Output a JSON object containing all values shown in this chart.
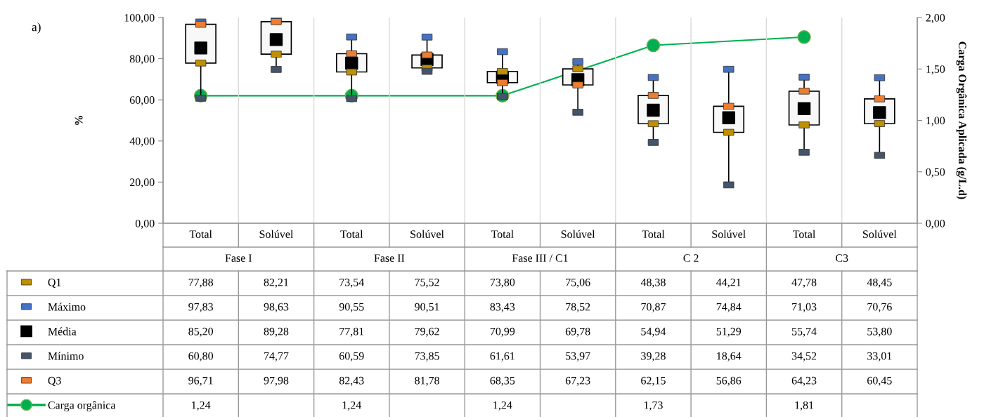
{
  "chart_data": {
    "type": "box",
    "categories": [
      "Total",
      "Solúvel",
      "Total",
      "Solúvel",
      "Total",
      "Solúvel",
      "Total",
      "Solúvel",
      "Total",
      "Solúvel"
    ],
    "annotations": [
      "a)",
      "Fase I",
      "Fase II",
      "Fase III / C1",
      "C 2",
      "C3"
    ],
    "ylabel": "%",
    "y2label": "Carga Orgânica Aplicada (g/L.d)",
    "ylim": [
      0,
      100
    ],
    "yticks": [
      {
        "value": 0,
        "label": "0,00"
      },
      {
        "value": 20,
        "label": "20,00"
      },
      {
        "value": 40,
        "label": "40,00"
      },
      {
        "value": 60,
        "label": "60,00"
      },
      {
        "value": 80,
        "label": "80,00"
      },
      {
        "value": 100,
        "label": "100,00"
      }
    ],
    "y2lim": [
      0,
      2
    ],
    "y2ticks": [
      {
        "value": 0,
        "label": "0,00"
      },
      {
        "value": 0.5,
        "label": "0,50"
      },
      {
        "value": 1,
        "label": "1,00"
      },
      {
        "value": 1.5,
        "label": "1,50"
      },
      {
        "value": 2,
        "label": "2,00"
      }
    ],
    "grid": "x",
    "legend": "bottom",
    "boxes": [
      {
        "low": 60.8,
        "q1": 77.88,
        "q3": 96.71,
        "high": 97.83
      },
      {
        "low": 74.77,
        "q1": 82.21,
        "q3": 97.98,
        "high": 98.63
      },
      {
        "low": 60.59,
        "q1": 73.54,
        "q3": 82.43,
        "high": 90.55
      },
      {
        "low": 73.85,
        "q1": 75.52,
        "q3": 81.78,
        "high": 90.51
      },
      {
        "low": 61.61,
        "q1": 68.35,
        "q3": 73.8,
        "high": 83.43
      },
      {
        "low": 53.97,
        "q1": 67.23,
        "q3": 75.06,
        "high": 78.52
      },
      {
        "low": 39.28,
        "q1": 48.38,
        "q3": 62.15,
        "high": 70.87
      },
      {
        "low": 18.64,
        "q1": 44.21,
        "q3": 56.86,
        "high": 74.84
      },
      {
        "low": 34.52,
        "q1": 47.78,
        "q3": 64.23,
        "high": 71.03
      },
      {
        "low": 33.01,
        "q1": 48.45,
        "q3": 60.45,
        "high": 70.76
      }
    ],
    "series": [
      {
        "name": "Q1",
        "type": "scatter",
        "color": "#c09000",
        "values": [
          77.88,
          82.21,
          73.54,
          75.52,
          73.8,
          75.06,
          48.38,
          44.21,
          47.78,
          48.45
        ],
        "value_labels": [
          "77,88",
          "82,21",
          "73,54",
          "75,52",
          "73,80",
          "75,06",
          "48,38",
          "44,21",
          "47,78",
          "48,45"
        ]
      },
      {
        "name": "Máximo",
        "type": "scatter",
        "color": "#4472c4",
        "values": [
          97.83,
          98.63,
          90.55,
          90.51,
          83.43,
          78.52,
          70.87,
          74.84,
          71.03,
          70.76
        ],
        "value_labels": [
          "97,83",
          "98,63",
          "90,55",
          "90,51",
          "83,43",
          "78,52",
          "70,87",
          "74,84",
          "71,03",
          "70,76"
        ]
      },
      {
        "name": "Média",
        "type": "scatter",
        "marker": "square",
        "color": "#000000",
        "values": [
          85.2,
          89.28,
          77.81,
          79.62,
          70.99,
          69.78,
          54.94,
          51.29,
          55.74,
          53.8
        ],
        "value_labels": [
          "85,20",
          "89,28",
          "77,81",
          "79,62",
          "70,99",
          "69,78",
          "54,94",
          "51,29",
          "55,74",
          "53,80"
        ]
      },
      {
        "name": "Mínimo",
        "type": "scatter",
        "color": "#44546a",
        "values": [
          60.8,
          74.77,
          60.59,
          73.85,
          61.61,
          53.97,
          39.28,
          18.64,
          34.52,
          33.01
        ],
        "value_labels": [
          "60,80",
          "74,77",
          "60,59",
          "73,85",
          "61,61",
          "53,97",
          "39,28",
          "18,64",
          "34,52",
          "33,01"
        ]
      },
      {
        "name": "Q3",
        "type": "scatter",
        "color": "#ed7d31",
        "values": [
          96.71,
          97.98,
          82.43,
          81.78,
          68.35,
          67.23,
          62.15,
          56.86,
          64.23,
          60.45
        ],
        "value_labels": [
          "96,71",
          "97,98",
          "82,43",
          "81,78",
          "68,35",
          "67,23",
          "62,15",
          "56,86",
          "64,23",
          "60,45"
        ]
      },
      {
        "name": "Carga orgânica",
        "type": "line",
        "axis": "y2",
        "marker": "circle",
        "color": "#00b050",
        "values": [
          1.24,
          null,
          1.24,
          null,
          1.24,
          null,
          1.73,
          null,
          1.81,
          null
        ],
        "value_labels": [
          "1,24",
          null,
          "1,24",
          null,
          "1,24",
          null,
          "1,73",
          null,
          "1,81",
          null
        ]
      }
    ]
  }
}
